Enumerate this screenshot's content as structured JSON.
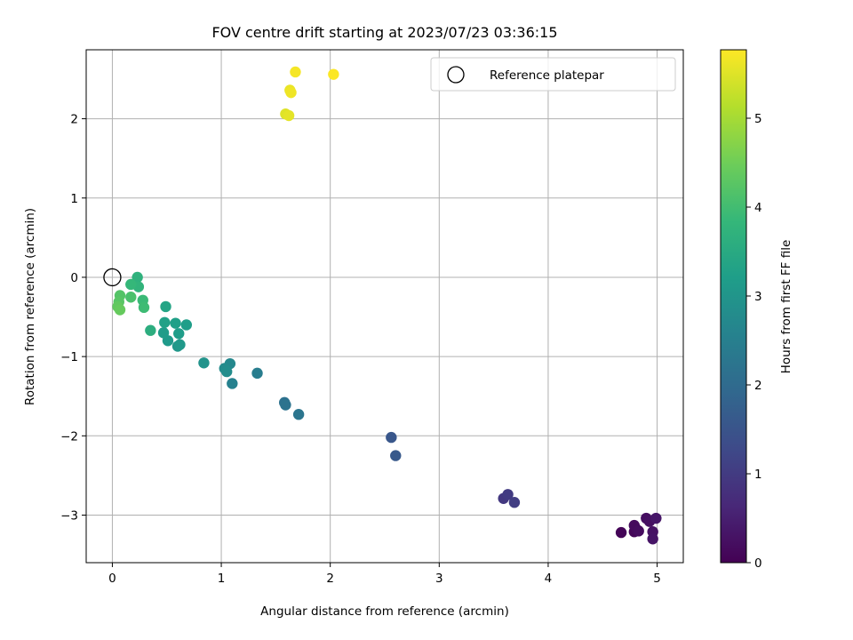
{
  "chart_data": {
    "type": "scatter",
    "title": "FOV centre drift starting at 2023/07/23 03:36:15",
    "xlabel": "Angular distance from reference (arcmin)",
    "ylabel": "Rotation from reference (arcmin)",
    "xlim": [
      -0.24,
      5.24
    ],
    "ylim": [
      -3.6,
      2.87
    ],
    "x_ticks": [
      0,
      1,
      2,
      3,
      4,
      5
    ],
    "x_tick_labels": [
      "0",
      "1",
      "2",
      "3",
      "4",
      "5"
    ],
    "y_ticks": [
      -3,
      -2,
      -1,
      0,
      1,
      2
    ],
    "y_tick_labels": [
      "−3",
      "−2",
      "−1",
      "0",
      "1",
      "2"
    ],
    "grid": true,
    "legend": {
      "position": "top-right",
      "entries": [
        "Reference platepar"
      ]
    },
    "reference_point": {
      "x": 0,
      "y": 0,
      "label": "Reference platepar",
      "marker": "open-circle"
    },
    "colorbar": {
      "label": "Hours from first FF file",
      "colormap": "viridis",
      "range": [
        0,
        5.77
      ],
      "ticks": [
        0,
        1,
        2,
        3,
        4,
        5
      ],
      "tick_labels": [
        "0",
        "1",
        "2",
        "3",
        "4",
        "5"
      ]
    },
    "points": [
      {
        "x": 4.67,
        "y": -3.22,
        "c": 0.05
      },
      {
        "x": 4.79,
        "y": -3.21,
        "c": 0.08
      },
      {
        "x": 4.81,
        "y": -3.18,
        "c": 0.12
      },
      {
        "x": 4.79,
        "y": -3.13,
        "c": 0.15
      },
      {
        "x": 4.83,
        "y": -3.2,
        "c": 0.18
      },
      {
        "x": 4.9,
        "y": -3.04,
        "c": 0.22
      },
      {
        "x": 4.93,
        "y": -3.08,
        "c": 0.25
      },
      {
        "x": 4.96,
        "y": -3.21,
        "c": 0.28
      },
      {
        "x": 4.96,
        "y": -3.3,
        "c": 0.32
      },
      {
        "x": 4.99,
        "y": -3.04,
        "c": 0.35
      },
      {
        "x": 3.59,
        "y": -2.79,
        "c": 0.95
      },
      {
        "x": 3.63,
        "y": -2.74,
        "c": 1.0
      },
      {
        "x": 3.69,
        "y": -2.84,
        "c": 1.05
      },
      {
        "x": 2.56,
        "y": -2.02,
        "c": 1.55
      },
      {
        "x": 2.6,
        "y": -2.25,
        "c": 1.6
      },
      {
        "x": 1.58,
        "y": -1.58,
        "c": 2.15
      },
      {
        "x": 1.59,
        "y": -1.61,
        "c": 2.2
      },
      {
        "x": 1.71,
        "y": -1.73,
        "c": 2.25
      },
      {
        "x": 1.33,
        "y": -1.21,
        "c": 2.45
      },
      {
        "x": 1.1,
        "y": -1.34,
        "c": 2.55
      },
      {
        "x": 1.08,
        "y": -1.09,
        "c": 2.7
      },
      {
        "x": 1.03,
        "y": -1.15,
        "c": 2.78
      },
      {
        "x": 1.05,
        "y": -1.19,
        "c": 2.82
      },
      {
        "x": 0.84,
        "y": -1.08,
        "c": 2.95
      },
      {
        "x": 0.6,
        "y": -0.87,
        "c": 3.05
      },
      {
        "x": 0.62,
        "y": -0.85,
        "c": 3.08
      },
      {
        "x": 0.51,
        "y": -0.8,
        "c": 3.12
      },
      {
        "x": 0.47,
        "y": -0.7,
        "c": 3.15
      },
      {
        "x": 0.61,
        "y": -0.71,
        "c": 3.18
      },
      {
        "x": 0.68,
        "y": -0.6,
        "c": 3.2
      },
      {
        "x": 0.58,
        "y": -0.58,
        "c": 3.25
      },
      {
        "x": 0.48,
        "y": -0.57,
        "c": 3.28
      },
      {
        "x": 0.49,
        "y": -0.37,
        "c": 3.35
      },
      {
        "x": 0.35,
        "y": -0.67,
        "c": 3.6
      },
      {
        "x": 0.23,
        "y": 0.0,
        "c": 3.7
      },
      {
        "x": 0.24,
        "y": -0.12,
        "c": 3.75
      },
      {
        "x": 0.17,
        "y": -0.09,
        "c": 3.85
      },
      {
        "x": 0.28,
        "y": -0.29,
        "c": 3.9
      },
      {
        "x": 0.29,
        "y": -0.38,
        "c": 3.95
      },
      {
        "x": 0.17,
        "y": -0.25,
        "c": 4.1
      },
      {
        "x": 0.07,
        "y": -0.23,
        "c": 4.2
      },
      {
        "x": 0.06,
        "y": -0.31,
        "c": 4.25
      },
      {
        "x": 0.05,
        "y": -0.37,
        "c": 4.35
      },
      {
        "x": 0.07,
        "y": -0.41,
        "c": 4.4
      },
      {
        "x": 1.59,
        "y": 2.06,
        "c": 5.5
      },
      {
        "x": 1.62,
        "y": 2.04,
        "c": 5.55
      },
      {
        "x": 1.63,
        "y": 2.36,
        "c": 5.6
      },
      {
        "x": 1.64,
        "y": 2.33,
        "c": 5.65
      },
      {
        "x": 1.68,
        "y": 2.59,
        "c": 5.7
      },
      {
        "x": 2.03,
        "y": 2.56,
        "c": 5.75
      }
    ]
  }
}
